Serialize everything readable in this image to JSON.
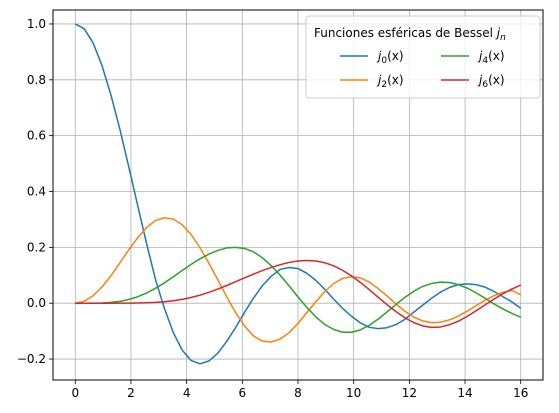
{
  "chart_data": {
    "type": "line",
    "legend": {
      "title": "Funciones esféricas de Bessel ",
      "title_symbol": "j",
      "title_subscript": "n",
      "placement": "top-right",
      "columns": 2
    },
    "xlim": [
      -0.8,
      16.8
    ],
    "ylim": [
      -0.275,
      1.05
    ],
    "xticks": [
      "0",
      "2",
      "4",
      "6",
      "8",
      "10",
      "12",
      "14",
      "16"
    ],
    "yticks": [
      "−0.2",
      "0.0",
      "0.2",
      "0.4",
      "0.6",
      "0.8",
      "1.0"
    ],
    "xtick_values": [
      0,
      2,
      4,
      6,
      8,
      10,
      12,
      14,
      16
    ],
    "ytick_values": [
      -0.2,
      0.0,
      0.2,
      0.4,
      0.6,
      0.8,
      1.0
    ],
    "grid": true,
    "x": [
      0.0,
      0.32,
      0.64,
      0.96,
      1.28,
      1.6,
      1.92,
      2.24,
      2.56,
      2.88,
      3.2,
      3.52,
      3.84,
      4.16,
      4.48,
      4.8,
      5.12,
      5.44,
      5.76,
      6.08,
      6.4,
      6.72,
      7.04,
      7.36,
      7.68,
      8.0,
      8.32,
      8.64,
      8.96,
      9.28,
      9.6,
      9.92,
      10.24,
      10.56,
      10.88,
      11.2,
      11.52,
      11.84,
      12.16,
      12.48,
      12.8,
      13.12,
      13.44,
      13.76,
      14.08,
      14.4,
      14.72,
      15.04,
      15.36,
      15.68,
      16.0
    ],
    "series": [
      {
        "order": 0,
        "color": "#1f77b4",
        "values": [
          1.0,
          0.983,
          0.932,
          0.851,
          0.746,
          0.624,
          0.489,
          0.351,
          0.214,
          0.0856,
          -0.0182,
          -0.105,
          -0.168,
          -0.205,
          -0.217,
          -0.207,
          -0.179,
          -0.137,
          -0.0871,
          -0.0326,
          0.0182,
          0.0627,
          0.0968,
          0.121,
          0.128,
          0.124,
          0.107,
          0.0818,
          0.0499,
          0.0146,
          -0.0181,
          -0.0467,
          -0.0704,
          -0.0863,
          -0.0912,
          -0.0877,
          -0.0766,
          -0.0574,
          -0.0319,
          -0.0068,
          0.018,
          0.0398,
          0.0563,
          0.0665,
          0.0694,
          0.0664,
          0.0575,
          0.042,
          0.0235,
          0.0049,
          -0.0179
        ]
      },
      {
        "order": 1,
        "color": "#ff7f0e",
        "values": [
          0.0,
          0.0068,
          0.0267,
          0.058,
          0.0981,
          0.144,
          0.191,
          0.234,
          0.271,
          0.296,
          0.306,
          0.301,
          0.281,
          0.246,
          0.199,
          0.143,
          0.0837,
          0.0229,
          -0.0338,
          -0.0815,
          -0.117,
          -0.136,
          -0.139,
          -0.128,
          -0.106,
          -0.0722,
          -0.0334,
          0.0051,
          0.041,
          0.0706,
          0.0887,
          0.0949,
          0.0907,
          0.0756,
          0.0524,
          0.0254,
          -0.0024,
          -0.0286,
          -0.0495,
          -0.0633,
          -0.0694,
          -0.068,
          -0.0598,
          -0.0459,
          -0.0281,
          -0.0088,
          0.0106,
          0.0269,
          0.0388,
          0.046,
          0.03
        ]
      },
      {
        "order": 2,
        "color": "#2ca02c",
        "values": [
          0.0,
          0.0,
          0.0001,
          0.0009,
          0.0028,
          0.0066,
          0.0133,
          0.0232,
          0.0365,
          0.0533,
          0.0729,
          0.0946,
          0.117,
          0.139,
          0.159,
          0.176,
          0.189,
          0.198,
          0.2,
          0.196,
          0.184,
          0.163,
          0.134,
          0.1,
          0.0621,
          0.0223,
          -0.0154,
          -0.0491,
          -0.0762,
          -0.0938,
          -0.104,
          -0.104,
          -0.0955,
          -0.0793,
          -0.057,
          -0.031,
          -0.0044,
          0.021,
          0.043,
          0.0602,
          0.0708,
          0.0754,
          0.0741,
          0.0665,
          0.054,
          0.037,
          0.0176,
          -0.0024,
          -0.0206,
          -0.0364,
          -0.05
        ]
      },
      {
        "order": 3,
        "color": "#d62728",
        "values": [
          0.0,
          0.0,
          0.0,
          0.0,
          0.0,
          0.0001,
          0.0003,
          0.0007,
          0.0015,
          0.0029,
          0.0052,
          0.0087,
          0.0137,
          0.0204,
          0.0288,
          0.0389,
          0.0506,
          0.0634,
          0.0771,
          0.0909,
          0.104,
          0.117,
          0.128,
          0.138,
          0.146,
          0.151,
          0.153,
          0.151,
          0.145,
          0.134,
          0.118,
          0.0978,
          0.0743,
          0.0484,
          0.0214,
          -0.0053,
          -0.0302,
          -0.052,
          -0.0696,
          -0.0815,
          -0.0865,
          -0.085,
          -0.0773,
          -0.0643,
          -0.0471,
          -0.0272,
          -0.0061,
          0.0146,
          0.0338,
          0.0506,
          0.065
        ]
      }
    ]
  },
  "legend_entries": [
    {
      "symbol": "j",
      "sub": "0",
      "arg": "(x)"
    },
    {
      "symbol": "j",
      "sub": "2",
      "arg": "(x)"
    },
    {
      "symbol": "j",
      "sub": "4",
      "arg": "(x)"
    },
    {
      "symbol": "j",
      "sub": "6",
      "arg": "(x)"
    }
  ]
}
